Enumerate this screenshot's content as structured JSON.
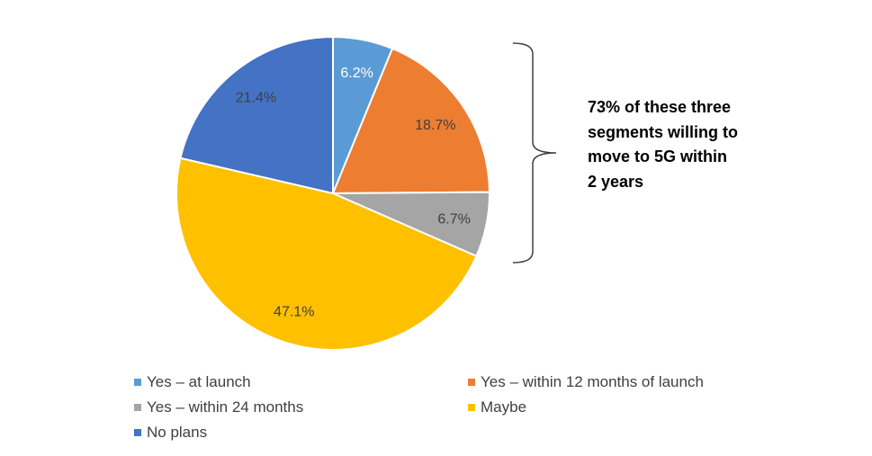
{
  "chart_data": {
    "type": "pie",
    "categories": [
      "Yes – at launch",
      "Yes – within 12 months of launch",
      "Yes – within 24 months",
      "Maybe",
      "No plans"
    ],
    "values": [
      6.2,
      18.7,
      6.7,
      47.1,
      21.4
    ],
    "data_labels": [
      "6.2%",
      "18.7%",
      "6.7%",
      "47.1%",
      "21.4%"
    ],
    "colors": [
      "#5B9BD5",
      "#ED7D31",
      "#A5A5A5",
      "#FFC000",
      "#4472C4"
    ],
    "start_angle": "12 o'clock, clockwise",
    "legend_placement": "bottom",
    "annotation": "73% of these three segments willing to move to 5G within 2 years"
  }
}
